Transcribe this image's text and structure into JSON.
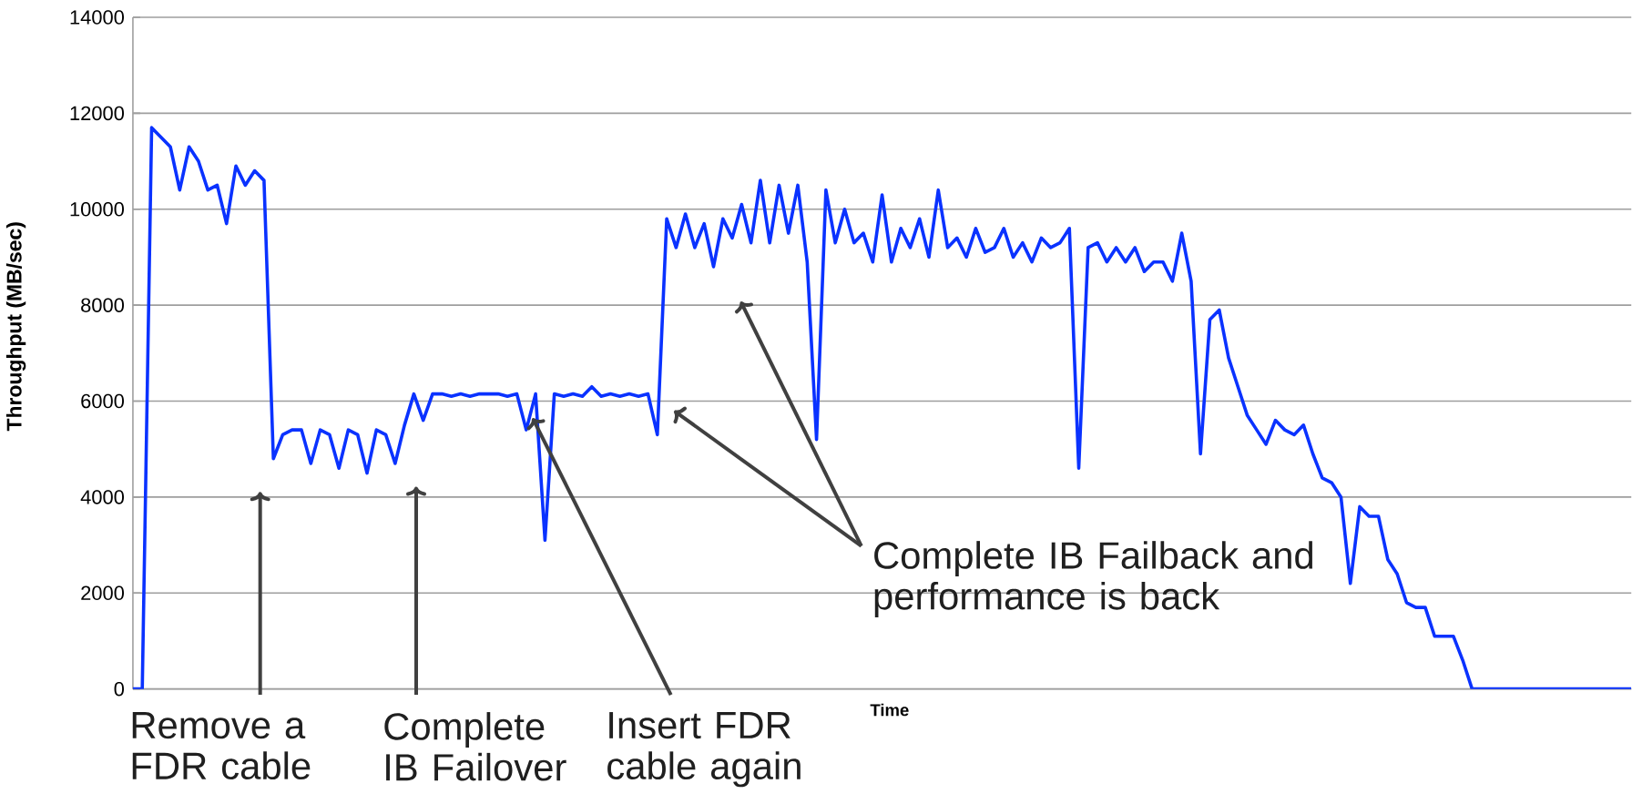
{
  "chart_data": {
    "type": "line",
    "xlabel": "Time",
    "ylabel": "Throughput (MB/sec)",
    "categories": [
      null,
      null,
      null,
      null,
      null,
      null,
      null,
      null,
      null,
      null,
      null,
      null,
      null,
      null,
      null,
      null,
      null,
      null,
      null,
      null,
      null,
      null,
      null,
      null,
      null,
      null,
      null,
      null,
      null,
      null,
      null,
      null,
      null,
      null,
      null,
      null,
      null,
      null,
      null,
      null,
      null,
      null,
      null,
      null,
      null,
      null,
      null,
      null,
      null,
      null,
      null,
      null,
      null,
      null,
      null,
      null,
      null,
      null,
      null,
      null,
      null,
      null,
      null,
      null,
      null,
      null,
      null,
      null,
      null,
      null,
      null,
      null,
      null,
      null,
      null,
      null,
      null,
      null,
      null,
      null,
      null,
      null,
      null,
      null,
      null,
      null,
      null,
      null,
      null,
      null,
      null,
      null,
      null,
      null,
      null,
      null,
      null,
      null,
      null,
      null,
      null,
      null,
      null,
      null,
      null,
      null,
      null,
      null,
      null,
      null,
      null,
      null,
      null,
      null,
      null,
      null,
      null,
      null,
      null,
      null,
      null,
      null,
      null,
      null,
      null,
      null,
      null,
      null,
      null,
      null,
      null,
      null,
      null,
      null,
      null,
      null,
      null,
      null,
      null,
      null,
      null,
      null,
      null,
      null,
      null,
      null,
      null,
      null,
      null,
      null,
      null,
      null,
      null,
      null,
      null,
      null,
      null,
      null,
      null,
      null,
      null
    ],
    "series": [
      {
        "color": "#0a32ff",
        "values": [
          0,
          0,
          11700,
          11500,
          11300,
          10400,
          11300,
          11000,
          10400,
          10500,
          9700,
          10900,
          10500,
          10800,
          10600,
          4800,
          5300,
          5400,
          5400,
          4700,
          5400,
          5300,
          4600,
          5400,
          5300,
          4500,
          5400,
          5300,
          4700,
          5500,
          6150,
          5600,
          6150,
          6150,
          6100,
          6150,
          6100,
          6150,
          6150,
          6150,
          6100,
          6150,
          5400,
          6150,
          3100,
          6150,
          6100,
          6150,
          6100,
          6300,
          6100,
          6150,
          6100,
          6150,
          6100,
          6150,
          5300,
          9800,
          9200,
          9900,
          9200,
          9700,
          8800,
          9800,
          9400,
          10100,
          9300,
          10600,
          9300,
          10500,
          9500,
          10500,
          8900,
          5200,
          10400,
          9300,
          10000,
          9300,
          9500,
          8900,
          10300,
          8900,
          9600,
          9200,
          9800,
          9000,
          10400,
          9200,
          9400,
          9000,
          9600,
          9100,
          9200,
          9600,
          9000,
          9300,
          8900,
          9400,
          9200,
          9300,
          9600,
          4600,
          9200,
          9300,
          8900,
          9200,
          8900,
          9200,
          8700,
          8900,
          8900,
          8500,
          9500,
          8500,
          4900,
          7700,
          7900,
          6900,
          6300,
          5700,
          5400,
          5100,
          5600,
          5400,
          5300,
          5500,
          4900,
          4400,
          4300,
          4000,
          2200,
          3800,
          3600,
          3600,
          2700,
          2400,
          1800,
          1700,
          1700,
          1100,
          1100,
          1100,
          600,
          0,
          0,
          0,
          0,
          0,
          0,
          0,
          0,
          0,
          0,
          0,
          0,
          0,
          0,
          0,
          0,
          0,
          0
        ]
      }
    ],
    "ylim": [
      0,
      14000
    ],
    "yticks": [
      0,
      2000,
      4000,
      6000,
      8000,
      10000,
      12000,
      14000
    ],
    "grid": "y",
    "line_style": "solid",
    "annotations": [
      "Remove a FDR cable",
      "Complete IB Failover",
      "Insert FDR cable again",
      "Complete IB Failback and performance is back"
    ]
  }
}
